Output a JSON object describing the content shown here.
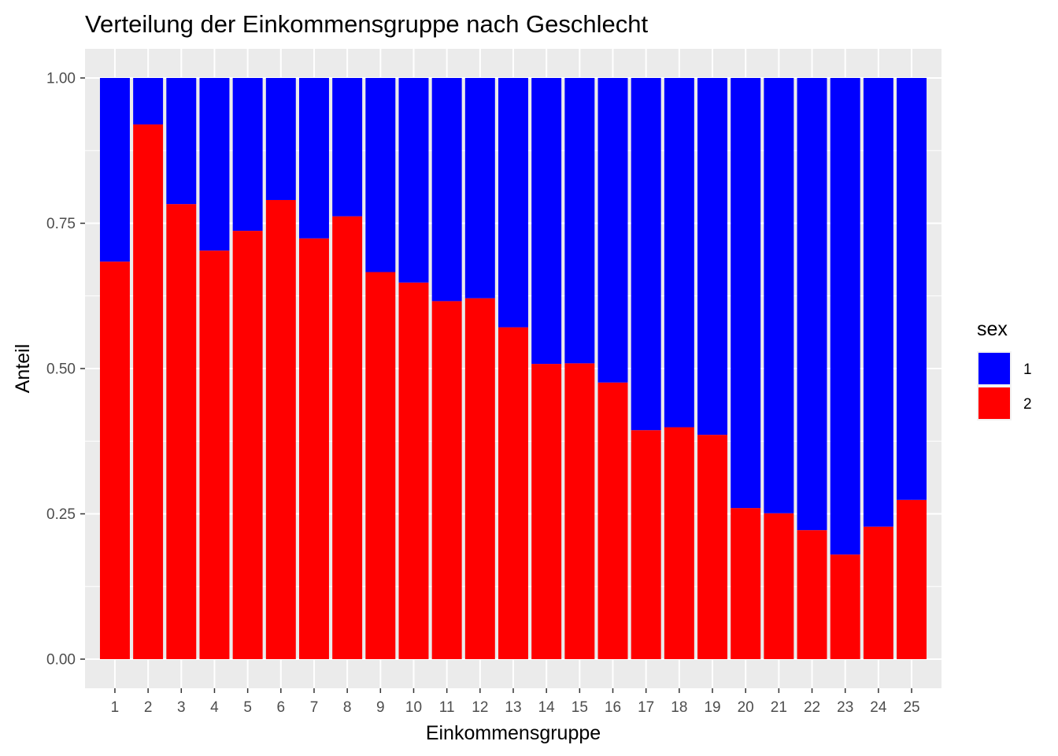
{
  "chart_data": {
    "type": "bar",
    "stacked": true,
    "normalized": true,
    "title": "Verteilung der Einkommensgruppe nach Geschlecht",
    "xlabel": "Einkommensgruppe",
    "ylabel": "Anteil",
    "ylim": [
      0,
      1
    ],
    "yticks": [
      "0.00",
      "0.25",
      "0.50",
      "0.75",
      "1.00"
    ],
    "ytick_values": [
      0,
      0.25,
      0.5,
      0.75,
      1
    ],
    "grid": true,
    "categories": [
      "1",
      "2",
      "3",
      "4",
      "5",
      "6",
      "7",
      "8",
      "9",
      "10",
      "11",
      "12",
      "13",
      "14",
      "15",
      "16",
      "17",
      "18",
      "19",
      "20",
      "21",
      "22",
      "23",
      "24",
      "25"
    ],
    "series": [
      {
        "name": "1",
        "color": "#0000ff",
        "values": [
          0.316,
          0.08,
          0.217,
          0.297,
          0.263,
          0.21,
          0.276,
          0.238,
          0.334,
          0.352,
          0.384,
          0.379,
          0.429,
          0.492,
          0.491,
          0.524,
          0.606,
          0.601,
          0.614,
          0.74,
          0.749,
          0.778,
          0.82,
          0.772,
          0.726
        ]
      },
      {
        "name": "2",
        "color": "#ff0000",
        "values": [
          0.684,
          0.92,
          0.783,
          0.703,
          0.737,
          0.79,
          0.724,
          0.762,
          0.666,
          0.648,
          0.616,
          0.621,
          0.571,
          0.508,
          0.509,
          0.476,
          0.394,
          0.399,
          0.386,
          0.26,
          0.251,
          0.222,
          0.18,
          0.228,
          0.274
        ]
      }
    ],
    "legend": {
      "title": "sex",
      "position": "right"
    }
  }
}
